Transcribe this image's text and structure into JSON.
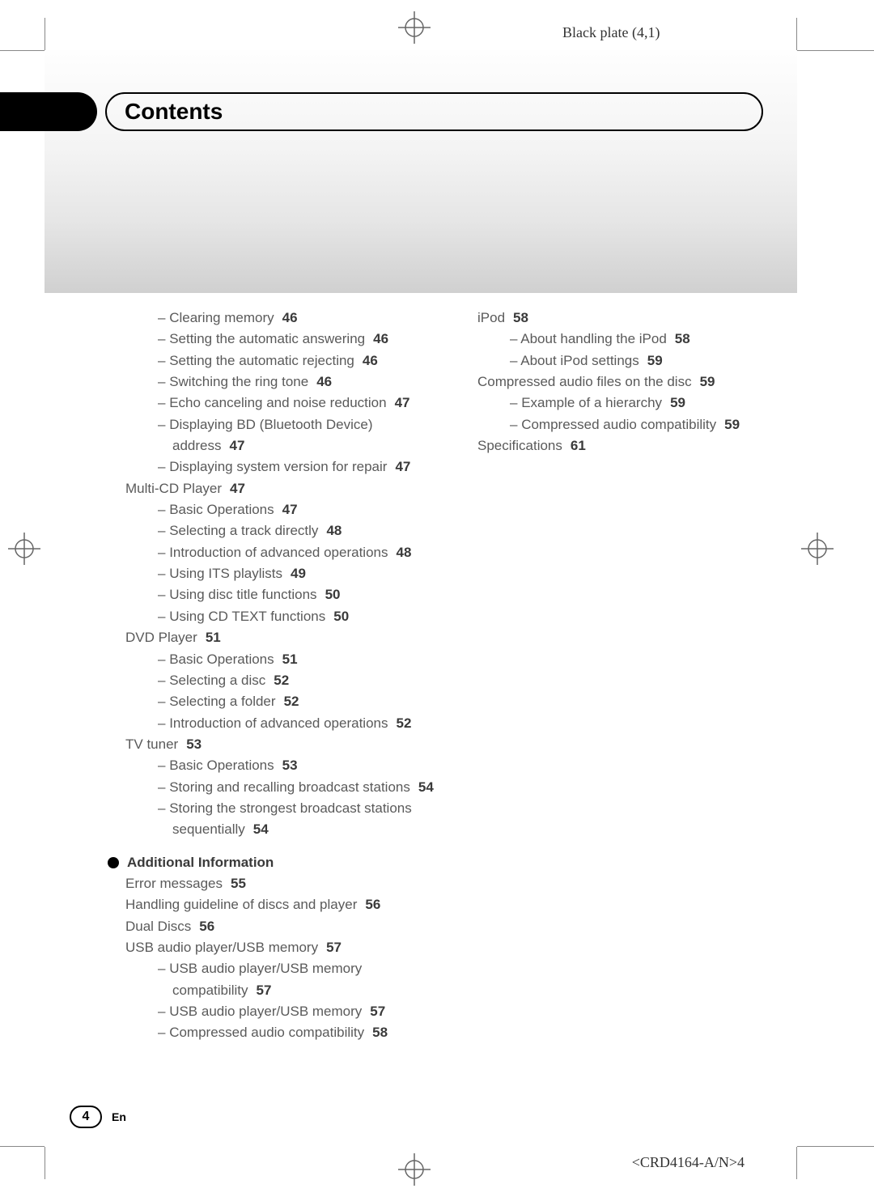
{
  "plate_label": "Black plate (4,1)",
  "title": "Contents",
  "page_number": "4",
  "page_lang": "En",
  "footer_code": "<CRD4164-A/N>4",
  "left_column": [
    {
      "level": 2,
      "text": "Clearing memory",
      "page": "46"
    },
    {
      "level": 2,
      "text": "Setting the automatic answering",
      "page": "46"
    },
    {
      "level": 2,
      "text": "Setting the automatic rejecting",
      "page": "46"
    },
    {
      "level": 2,
      "text": "Switching the ring tone",
      "page": "46"
    },
    {
      "level": 2,
      "text": "Echo canceling and noise reduction",
      "page": "47"
    },
    {
      "level": 2,
      "text": "Displaying BD (Bluetooth Device) address",
      "page": "47"
    },
    {
      "level": 2,
      "text": "Displaying system version for repair",
      "page": "47"
    },
    {
      "level": 1,
      "text": "Multi-CD Player",
      "page": "47"
    },
    {
      "level": 2,
      "text": "Basic Operations",
      "page": "47"
    },
    {
      "level": 2,
      "text": "Selecting a track directly",
      "page": "48"
    },
    {
      "level": 2,
      "text": "Introduction of advanced operations",
      "page": "48"
    },
    {
      "level": 2,
      "text": "Using ITS playlists",
      "page": "49"
    },
    {
      "level": 2,
      "text": "Using disc title functions",
      "page": "50"
    },
    {
      "level": 2,
      "text": "Using CD TEXT functions",
      "page": "50"
    },
    {
      "level": 1,
      "text": "DVD Player",
      "page": "51"
    },
    {
      "level": 2,
      "text": "Basic Operations",
      "page": "51"
    },
    {
      "level": 2,
      "text": "Selecting a disc",
      "page": "52"
    },
    {
      "level": 2,
      "text": "Selecting a folder",
      "page": "52"
    },
    {
      "level": 2,
      "text": "Introduction of advanced operations",
      "page": "52"
    },
    {
      "level": 1,
      "text": "TV tuner",
      "page": "53"
    },
    {
      "level": 2,
      "text": "Basic Operations",
      "page": "53"
    },
    {
      "level": 2,
      "text": "Storing and recalling broadcast stations",
      "page": "54"
    },
    {
      "level": 2,
      "text": "Storing the strongest broadcast stations sequentially",
      "page": "54"
    }
  ],
  "section_heading": "Additional Information",
  "left_column_2": [
    {
      "level": 1,
      "text": "Error messages",
      "page": "55"
    },
    {
      "level": 1,
      "text": "Handling guideline of discs and player",
      "page": "56"
    },
    {
      "level": 1,
      "text": "Dual Discs",
      "page": "56"
    },
    {
      "level": 1,
      "text": "USB audio player/USB memory",
      "page": "57"
    },
    {
      "level": 2,
      "text": "USB audio player/USB memory compatibility",
      "page": "57"
    },
    {
      "level": 2,
      "text": "USB audio player/USB memory",
      "page": "57"
    },
    {
      "level": 2,
      "text": "Compressed audio compatibility",
      "page": "58"
    }
  ],
  "right_column": [
    {
      "level": 1,
      "text": "iPod",
      "page": "58"
    },
    {
      "level": 2,
      "text": "About handling the iPod",
      "page": "58"
    },
    {
      "level": 2,
      "text": "About iPod settings",
      "page": "59"
    },
    {
      "level": 1,
      "text": "Compressed audio files on the disc",
      "page": "59"
    },
    {
      "level": 2,
      "text": "Example of a hierarchy",
      "page": "59"
    },
    {
      "level": 2,
      "text": "Compressed audio compatibility",
      "page": "59"
    },
    {
      "level": 1,
      "text": "Specifications",
      "page": "61"
    }
  ]
}
